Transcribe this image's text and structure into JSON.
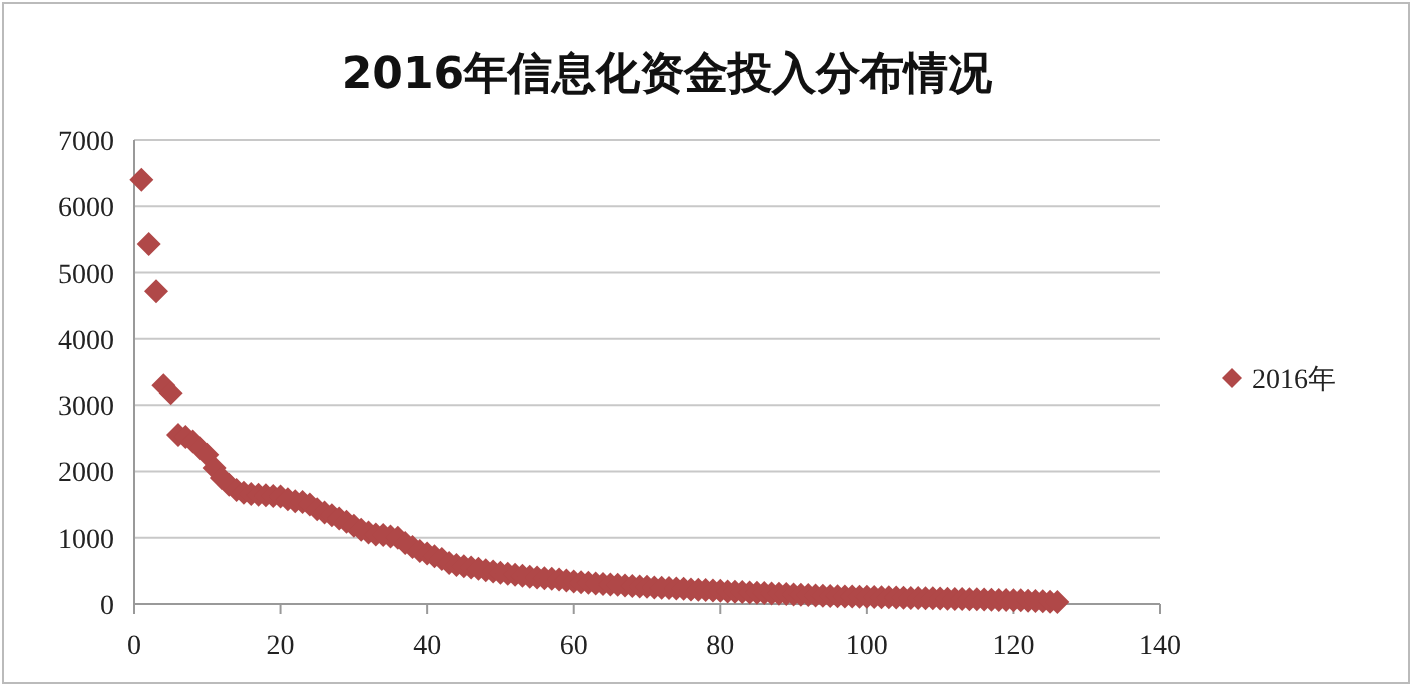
{
  "chart_data": {
    "type": "scatter",
    "title": "2016年信息化资金投入分布情况",
    "x": [
      1,
      2,
      3,
      4,
      5,
      6,
      7,
      8,
      9,
      10,
      11,
      12,
      13,
      14,
      15,
      16,
      17,
      18,
      19,
      20,
      21,
      22,
      23,
      24,
      25,
      26,
      27,
      28,
      29,
      30,
      31,
      32,
      33,
      34,
      35,
      36,
      37,
      38,
      39,
      40,
      41,
      42,
      43,
      44,
      45,
      46,
      47,
      48,
      49,
      50,
      51,
      52,
      53,
      54,
      55,
      56,
      57,
      58,
      59,
      60,
      61,
      62,
      63,
      64,
      65,
      66,
      67,
      68,
      69,
      70,
      71,
      72,
      73,
      74,
      75,
      76,
      77,
      78,
      79,
      80,
      81,
      82,
      83,
      84,
      85,
      86,
      87,
      88,
      89,
      90,
      91,
      92,
      93,
      94,
      95,
      96,
      97,
      98,
      99,
      100,
      101,
      102,
      103,
      104,
      105,
      106,
      107,
      108,
      109,
      110,
      111,
      112,
      113,
      114,
      115,
      116,
      117,
      118,
      119,
      120,
      121,
      122,
      123,
      124,
      125,
      126
    ],
    "series": [
      {
        "name": "2016年",
        "color": "#b04848",
        "values": [
          6400,
          5430,
          4720,
          3300,
          3180,
          2550,
          2520,
          2450,
          2350,
          2250,
          2050,
          1900,
          1800,
          1720,
          1680,
          1660,
          1650,
          1640,
          1630,
          1620,
          1580,
          1550,
          1540,
          1500,
          1430,
          1380,
          1340,
          1290,
          1240,
          1180,
          1120,
          1080,
          1050,
          1040,
          1020,
          1000,
          920,
          860,
          800,
          760,
          720,
          680,
          620,
          590,
          570,
          550,
          530,
          510,
          490,
          470,
          455,
          440,
          425,
          410,
          400,
          390,
          380,
          370,
          355,
          340,
          330,
          320,
          310,
          300,
          295,
          290,
          280,
          270,
          265,
          260,
          250,
          245,
          240,
          235,
          230,
          220,
          215,
          210,
          205,
          200,
          190,
          185,
          180,
          175,
          170,
          165,
          160,
          155,
          150,
          145,
          140,
          135,
          130,
          125,
          120,
          118,
          115,
          112,
          110,
          108,
          105,
          102,
          100,
          97,
          95,
          92,
          90,
          87,
          85,
          82,
          80,
          77,
          75,
          72,
          70,
          67,
          65,
          62,
          60,
          57,
          55,
          50,
          45,
          40,
          35,
          30
        ]
      }
    ],
    "xlim": [
      0,
      140
    ],
    "xticks": [
      0,
      20,
      40,
      60,
      80,
      100,
      120,
      140
    ],
    "ylim": [
      0,
      7000
    ],
    "yticks": [
      0,
      1000,
      2000,
      3000,
      4000,
      5000,
      6000,
      7000
    ],
    "grid": "y",
    "legend": "right",
    "marker": "diamond"
  }
}
